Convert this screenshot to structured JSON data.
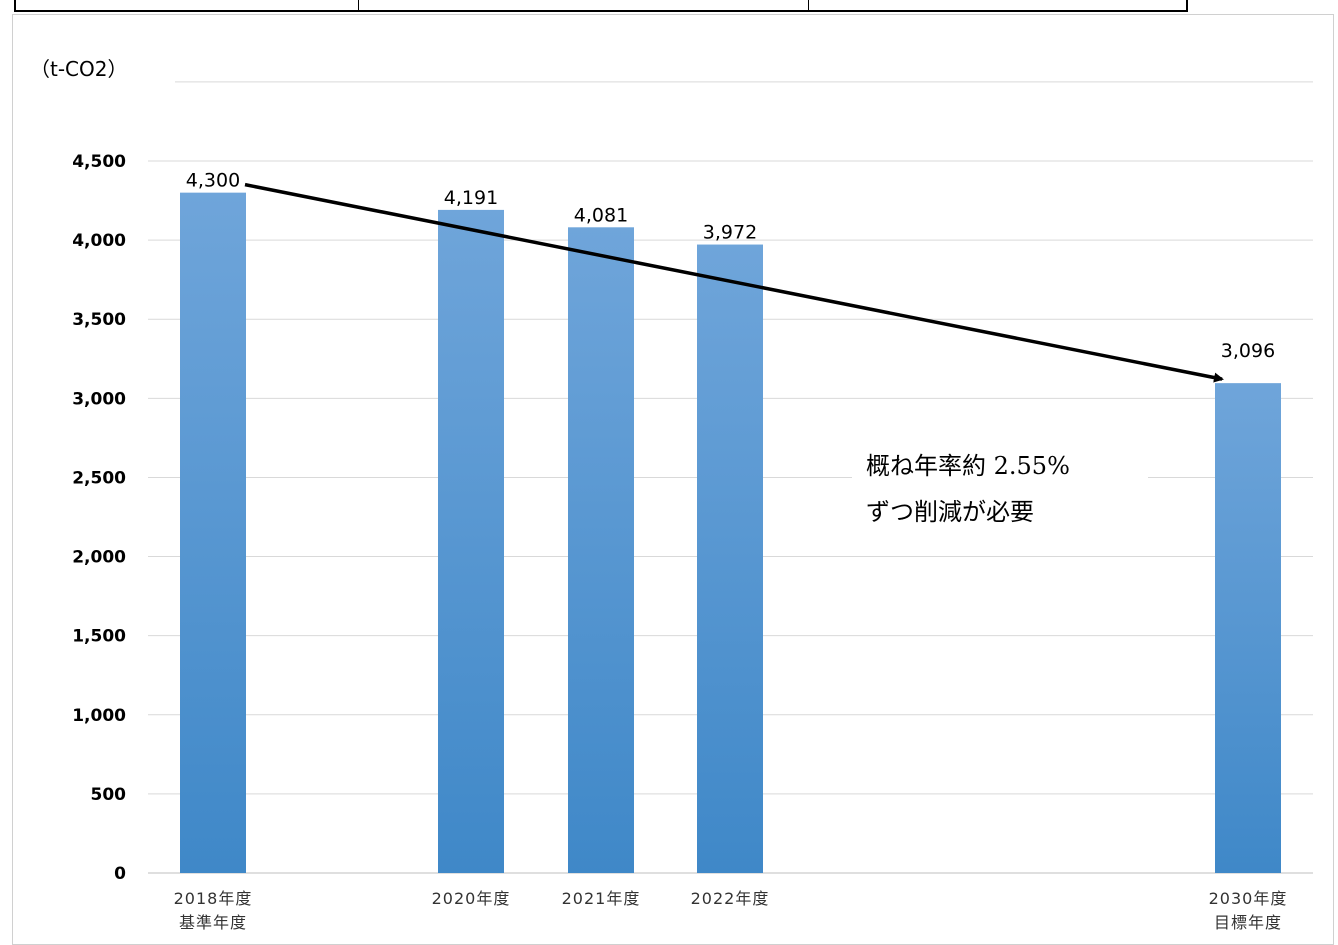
{
  "chart_data": {
    "type": "bar",
    "unit_label": "（t-CO2）",
    "categories": [
      [
        "2018年度",
        "基準年度"
      ],
      [
        "2020年度"
      ],
      [
        "2021年度"
      ],
      [
        "2022年度"
      ],
      [
        "2030年度",
        "目標年度"
      ]
    ],
    "values": [
      4300,
      4191,
      4081,
      3972,
      3096
    ],
    "data_labels": [
      "4,300",
      "4,191",
      "4,081",
      "3,972",
      "3,096"
    ],
    "y_ticks": [
      {
        "value": 0,
        "label": "0"
      },
      {
        "value": 500,
        "label": "500"
      },
      {
        "value": 1000,
        "label": "1,000"
      },
      {
        "value": 1500,
        "label": "1,500"
      },
      {
        "value": 2000,
        "label": "2,000"
      },
      {
        "value": 2500,
        "label": "2,500"
      },
      {
        "value": 3000,
        "label": "3,000"
      },
      {
        "value": 3500,
        "label": "3,500"
      },
      {
        "value": 4000,
        "label": "4,000"
      },
      {
        "value": 4500,
        "label": "4,500"
      },
      {
        "value": 5000,
        "label": ""
      }
    ],
    "ylim": [
      0,
      5000
    ],
    "grid": true,
    "bar_color_top": "#6fa5da",
    "bar_color_bottom": "#3f88c8",
    "trend_arrow": {
      "from": "2018年度",
      "to": "2030年度"
    },
    "annotation": [
      "概ね年率約 2.55%",
      "ずつ削減が必要"
    ]
  }
}
